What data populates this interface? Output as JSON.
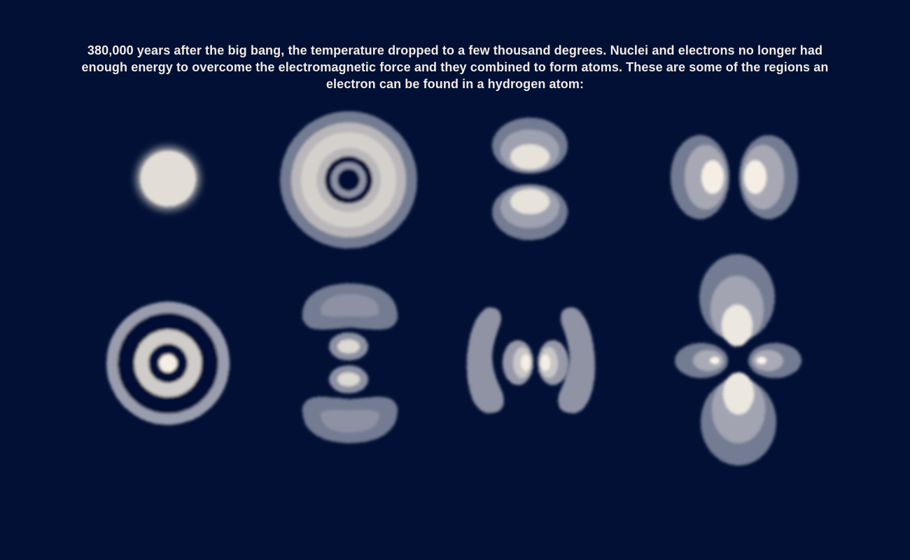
{
  "caption": "380,000 years after the big bang, the temperature dropped to a few thousand degrees. Nuclei and electrons no longer had enough energy to overcome the electromagnetic force and they combined to form atoms. These are some of the regions an electron can be found in a hydrogen atom:",
  "colors": {
    "background": "#011034",
    "text": "#f1ebe4",
    "orbital_light": "#f4eee5",
    "orbital_mid": "#b9b7ba",
    "orbital_dark": "#737b92"
  },
  "orbitals": [
    "1s",
    "2s",
    "2p_z",
    "2p_x",
    "3s",
    "3d_z2",
    "3p_x",
    "3d"
  ]
}
